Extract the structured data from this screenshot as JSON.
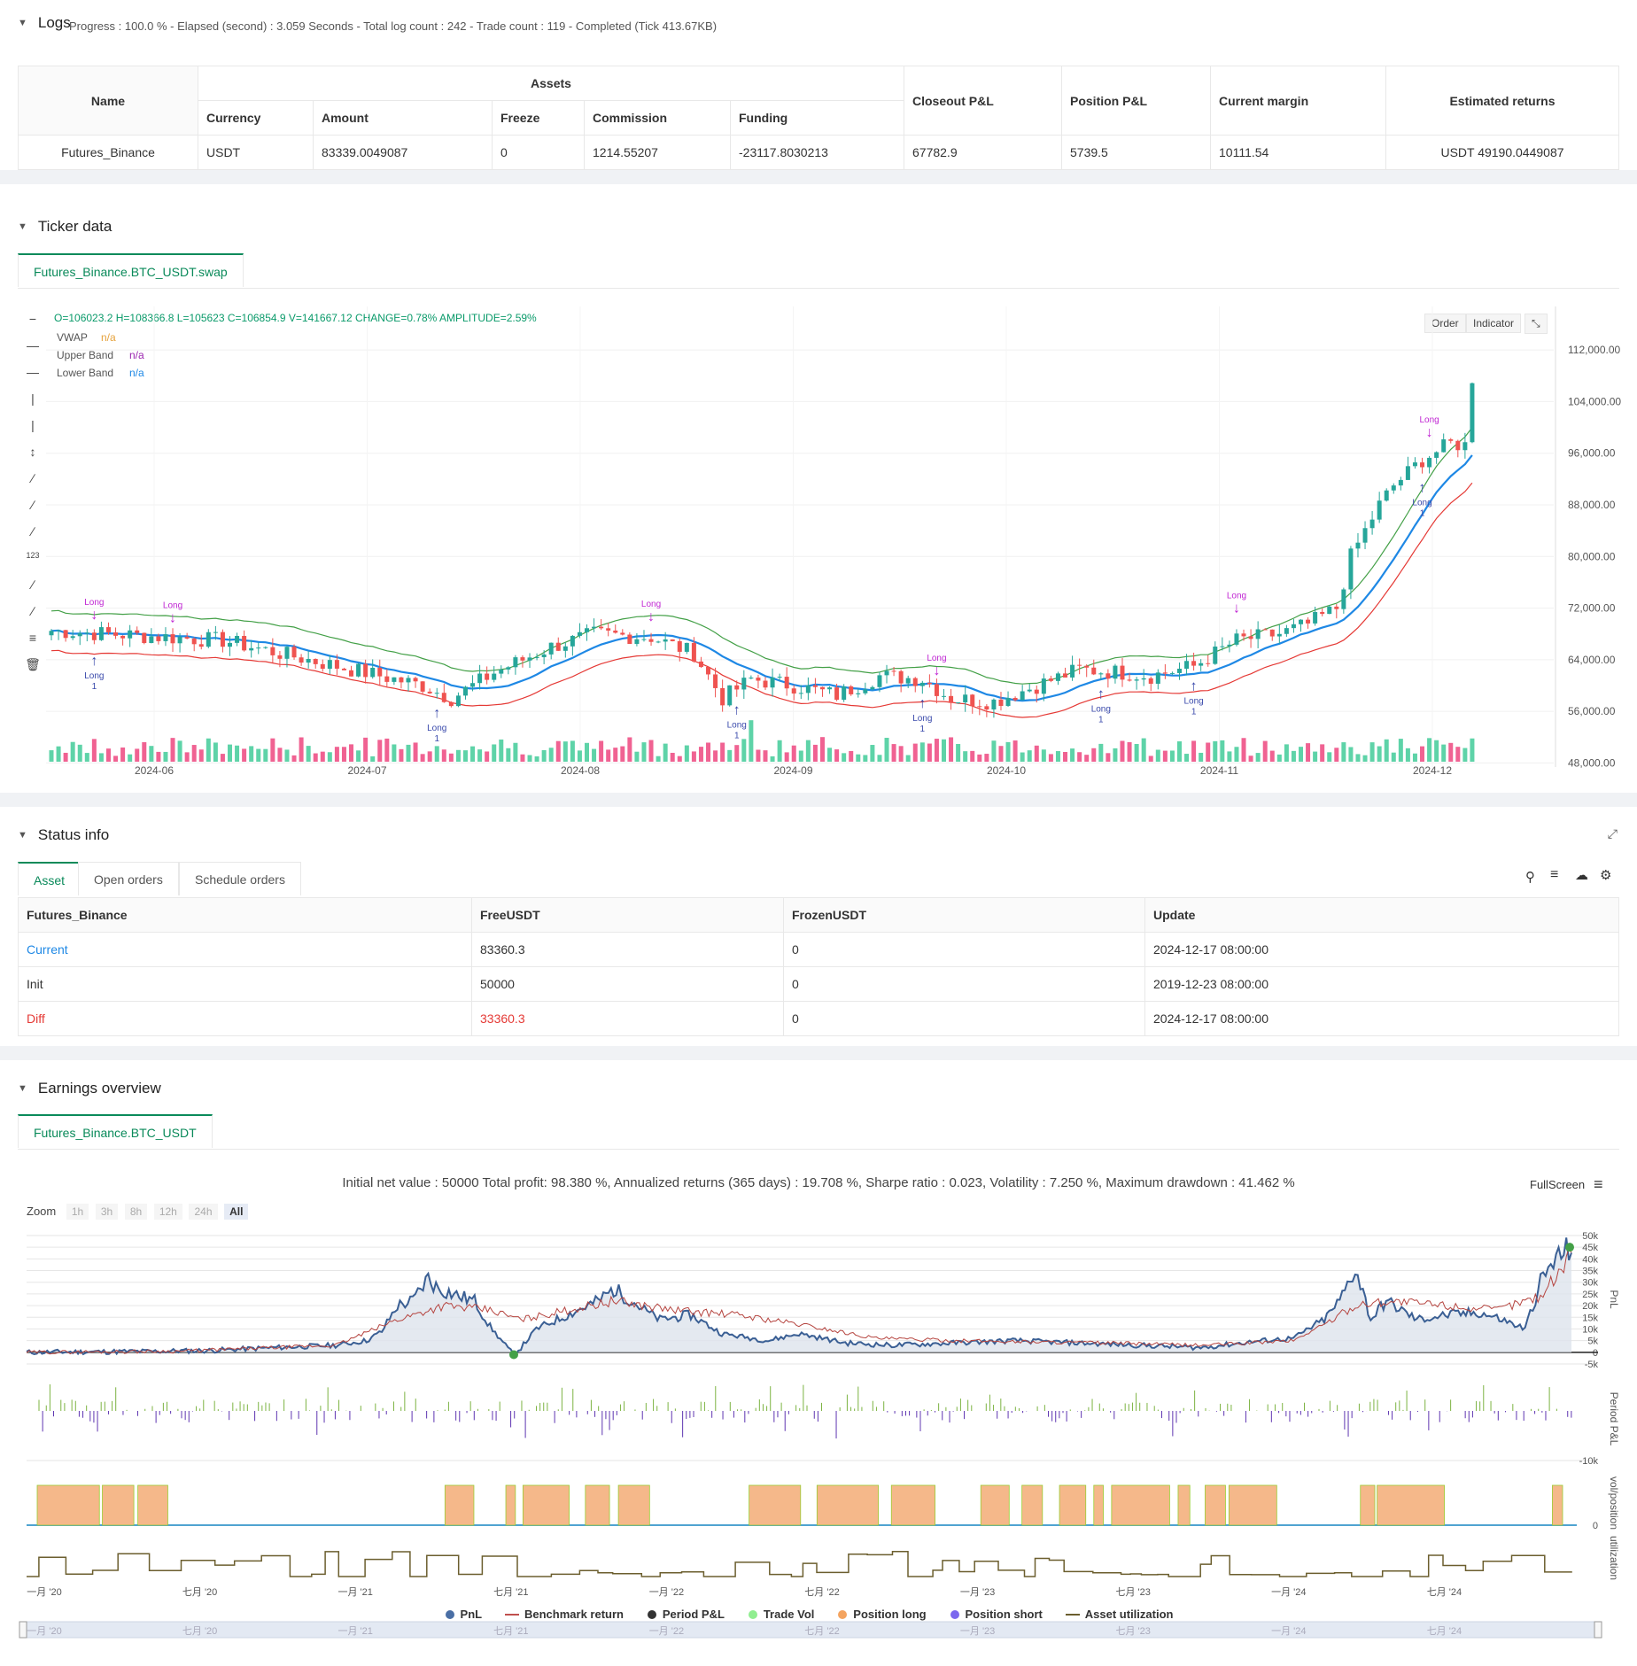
{
  "logs": {
    "title": "Logs",
    "progress": "Progress : 100.0 % - Elapsed (second) : 3.059  Seconds - Total log count : 242 - Trade count : 119 - Completed (Tick 413.67KB)",
    "headers": {
      "name": "Name",
      "assets": "Assets",
      "currency": "Currency",
      "amount": "Amount",
      "freeze": "Freeze",
      "commission": "Commission",
      "funding": "Funding",
      "closeout": "Closeout P&L",
      "position": "Position P&L",
      "margin": "Current margin",
      "returns": "Estimated returns"
    },
    "row": {
      "name": "Futures_Binance",
      "currency": "USDT",
      "amount": "83339.0049087",
      "freeze": "0",
      "commission": "1214.55207",
      "funding": "-23117.8030213",
      "closeout": "67782.9",
      "position": "5739.5",
      "margin": "10111.54",
      "returns": "USDT 49190.0449087"
    }
  },
  "ticker": {
    "title": "Ticker data",
    "tab": "Futures_Binance.BTC_USDT.swap",
    "ohlc": "O=106023.2 H=108366.8 L=105623 C=106854.9 V=141667.12 CHANGE=0.78% AMPLITUDE=2.59%",
    "indicators": [
      {
        "name": "VWAP",
        "value": "n/a",
        "color": "#e6a23c"
      },
      {
        "name": "Upper Band",
        "value": "n/a",
        "color": "#9c27b0"
      },
      {
        "name": "Lower Band",
        "value": "n/a",
        "color": "#1e88e5"
      }
    ],
    "buttons": {
      "order": "Order",
      "indicator": "Indicator"
    },
    "y_ticks": [
      "112,000.00",
      "104,000.00",
      "96,000.00",
      "88,000.00",
      "80,000.00",
      "72,000.00",
      "64,000.00",
      "56,000.00",
      "48,000.00"
    ],
    "x_ticks": [
      "2024-06",
      "2024-07",
      "2024-08",
      "2024-09",
      "2024-10",
      "2024-11",
      "2024-12"
    ],
    "signal_label": "Long",
    "signal_count": "1"
  },
  "status": {
    "title": "Status info",
    "tabs": [
      "Asset",
      "Open orders",
      "Schedule orders"
    ],
    "headers": [
      "Futures_Binance",
      "FreeUSDT",
      "FrozenUSDT",
      "Update"
    ],
    "rows": [
      {
        "label": "Current",
        "free": "83360.3",
        "frozen": "0",
        "update": "2024-12-17 08:00:00",
        "color": "#1e88e5"
      },
      {
        "label": "Init",
        "free": "50000",
        "frozen": "0",
        "update": "2019-12-23 08:00:00",
        "color": "#333333"
      },
      {
        "label": "Diff",
        "free": "33360.3",
        "frozen": "0",
        "update": "2024-12-17 08:00:00",
        "color": "#e53935"
      }
    ]
  },
  "earnings": {
    "title": "Earnings overview",
    "tab": "Futures_Binance.BTC_USDT",
    "summary": "Initial net value : 50000  Total profit: 98.380 %, Annualized returns (365 days) : 19.708 %, Sharpe ratio : 0.023, Volatility : 7.250 %, Maximum drawdown : 41.462 %",
    "fullscreen": "FullScreen",
    "zoom_label": "Zoom",
    "zoom_options": [
      "1h",
      "3h",
      "8h",
      "12h",
      "24h",
      "All"
    ],
    "pnl_ticks": [
      "50k",
      "45k",
      "40k",
      "35k",
      "30k",
      "25k",
      "20k",
      "15k",
      "10k",
      "5k",
      "0",
      "-5k"
    ],
    "period_ticks": [
      "-10k"
    ],
    "vol_ticks": [
      "0"
    ],
    "axis_titles": {
      "pnl": "PnL",
      "period": "Period P&L",
      "vol": "vol/position",
      "util": "utilization"
    },
    "x_ticks": [
      "一月 '20",
      "七月 '20",
      "一月 '21",
      "七月 '21",
      "一月 '22",
      "七月 '22",
      "一月 '23",
      "七月 '23",
      "一月 '24",
      "七月 '24"
    ],
    "legend": [
      {
        "name": "PnL",
        "color": "#4a6fa5",
        "shape": "dot"
      },
      {
        "name": "Benchmark return",
        "color": "#c0504d",
        "shape": "line"
      },
      {
        "name": "Period P&L",
        "color": "#333333",
        "shape": "dot"
      },
      {
        "name": "Trade Vol",
        "color": "#90ee90",
        "shape": "dot"
      },
      {
        "name": "Position long",
        "color": "#f4a460",
        "shape": "dot"
      },
      {
        "name": "Position short",
        "color": "#7b68ee",
        "shape": "dot"
      },
      {
        "name": "Asset utilization",
        "color": "#6b5e2e",
        "shape": "line"
      }
    ]
  }
}
